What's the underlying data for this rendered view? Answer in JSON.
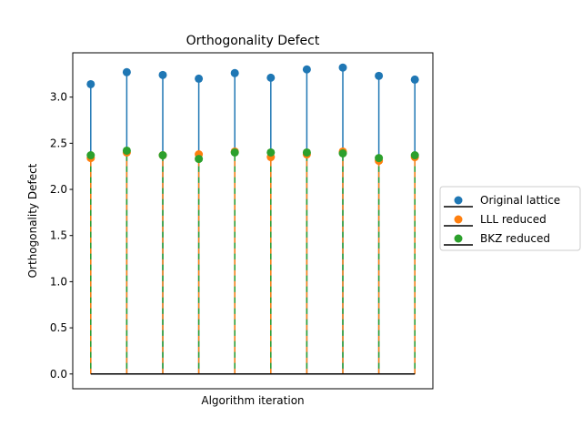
{
  "chart_data": {
    "type": "stem",
    "title": "Orthogonality Defect",
    "xlabel": "Algorithm iteration",
    "ylabel": "Orthogonality Defect",
    "ylim": [
      -0.16,
      3.48
    ],
    "xlim": [
      -0.5,
      9.5
    ],
    "x": [
      0,
      1,
      2,
      3,
      4,
      5,
      6,
      7,
      8,
      9
    ],
    "yticks": [
      "0.0",
      "0.5",
      "1.0",
      "1.5",
      "2.0",
      "2.5",
      "3.0"
    ],
    "xticks_visible": false,
    "grid": false,
    "baseline": 0,
    "legend_position": "center-right-outside",
    "series": [
      {
        "name": "Original lattice",
        "color": "#1f77b4",
        "stem_style": "solid",
        "values": [
          3.14,
          3.27,
          3.24,
          3.2,
          3.26,
          3.21,
          3.3,
          3.32,
          3.23,
          3.19
        ]
      },
      {
        "name": "LLL reduced",
        "color": "#ff7f0e",
        "stem_style": "dashed",
        "values": [
          2.34,
          2.4,
          2.37,
          2.38,
          2.41,
          2.35,
          2.38,
          2.41,
          2.31,
          2.35
        ]
      },
      {
        "name": "BKZ reduced",
        "color": "#2ca02c",
        "stem_style": "dashed",
        "values": [
          2.37,
          2.42,
          2.37,
          2.33,
          2.4,
          2.4,
          2.4,
          2.39,
          2.34,
          2.37
        ]
      }
    ]
  }
}
